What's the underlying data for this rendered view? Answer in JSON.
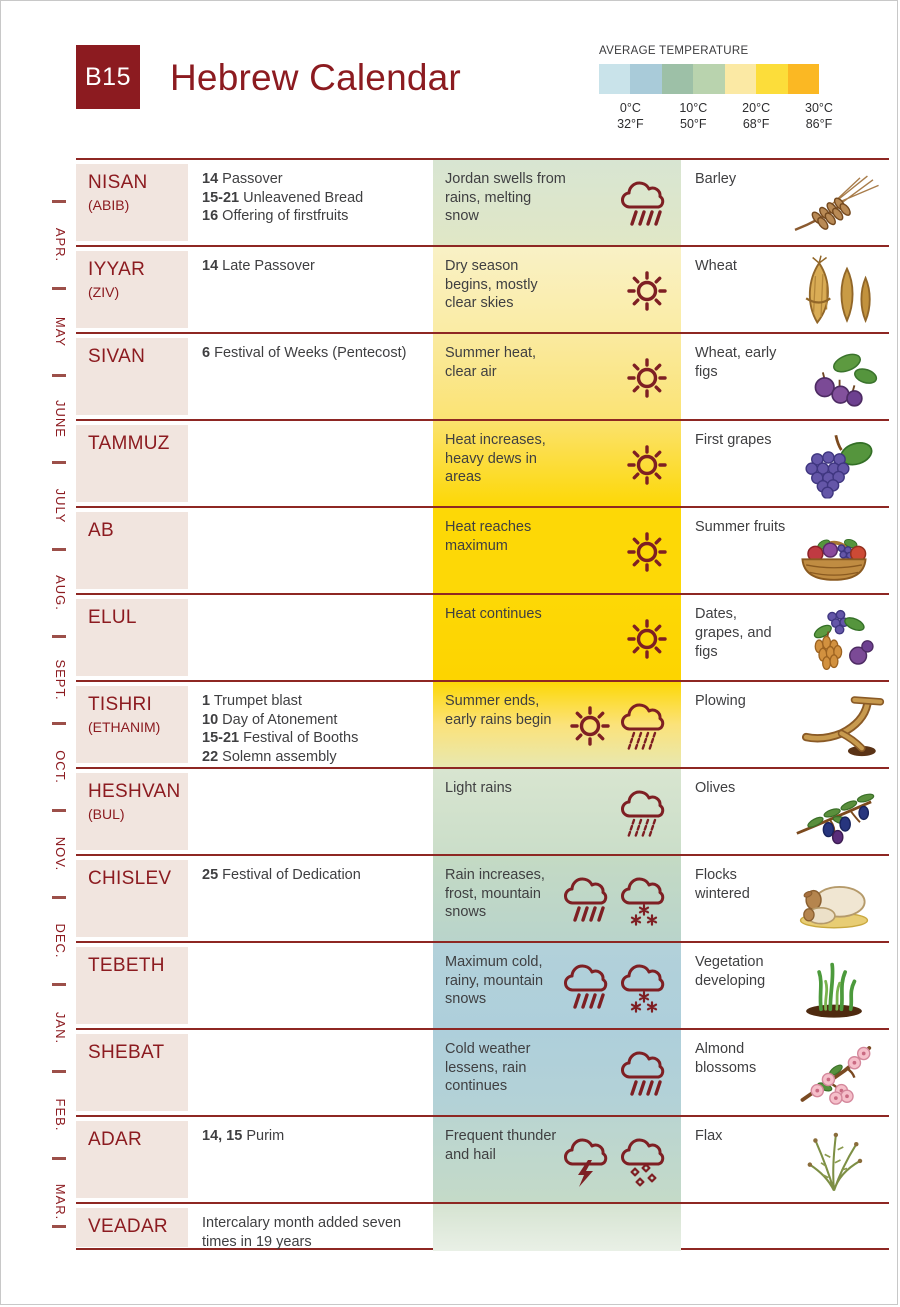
{
  "page": {
    "code": "B15",
    "title": "Hebrew Calendar"
  },
  "colors": {
    "accent": "#8c1b20",
    "line": "#8e2723",
    "month_bg": "#f1e5df",
    "icon": "#7e1f23",
    "text": "#3f3f41",
    "dash": "#9c4f49"
  },
  "legend": {
    "title": "AVERAGE TEMPERATURE",
    "segments": [
      "#c9e3ea",
      "#a9cbd9",
      "#9dc0a7",
      "#b9d3ae",
      "#fbe9a4",
      "#fcdd3a",
      "#fbb823"
    ],
    "ticks": [
      {
        "c": "0°C",
        "f": "32°F"
      },
      {
        "c": "10°C",
        "f": "50°F"
      },
      {
        "c": "20°C",
        "f": "68°F"
      },
      {
        "c": "30°C",
        "f": "86°F"
      }
    ]
  },
  "rail": {
    "months": [
      "APR.",
      "MAY",
      "JUNE",
      "JULY",
      "AUG.",
      "SEPT.",
      "OCT.",
      "NOV.",
      "DEC.",
      "JAN.",
      "FEB.",
      "MAR."
    ]
  },
  "rows": [
    {
      "month": "NISAN",
      "alt": "(ABIB)",
      "festivals": [
        {
          "d": "14",
          "t": "Passover"
        },
        {
          "d": "15-21",
          "t": "Unleavened Bread"
        },
        {
          "d": "16",
          "t": "Offering of firstfruits"
        }
      ],
      "weather": {
        "text": "Jordan swells from rains, melting snow",
        "icons": [
          "rain"
        ],
        "bg": [
          "#d8e5d2",
          "#e0e7c6"
        ]
      },
      "crops": {
        "label": "Barley",
        "art": "barley"
      }
    },
    {
      "month": "IYYAR",
      "alt": "(ZIV)",
      "festivals": [
        {
          "d": "14",
          "t": "Late Passover"
        }
      ],
      "weather": {
        "text": "Dry season begins, mostly clear skies",
        "icons": [
          "sun"
        ],
        "bg": [
          "#f9f1c6",
          "#faeca4"
        ]
      },
      "crops": {
        "label": "Wheat",
        "art": "wheat"
      }
    },
    {
      "month": "SIVAN",
      "alt": "",
      "festivals": [
        {
          "d": "6",
          "t": "Festival of Weeks (Pentecost)"
        }
      ],
      "weather": {
        "text": "Summer heat, clear air",
        "icons": [
          "sun"
        ],
        "bg": [
          "#faeaa0",
          "#fbe374"
        ]
      },
      "crops": {
        "label": "Wheat, early figs",
        "art": "figs"
      }
    },
    {
      "month": "TAMMUZ",
      "alt": "",
      "festivals": [],
      "weather": {
        "text": "Heat increases, heavy dews in areas",
        "icons": [
          "sun"
        ],
        "bg": [
          "#fbe26e",
          "#fdd806"
        ]
      },
      "crops": {
        "label": "First grapes",
        "art": "grapes"
      }
    },
    {
      "month": "AB",
      "alt": "",
      "festivals": [],
      "weather": {
        "text": "Heat reaches maximum",
        "icons": [
          "sun"
        ],
        "bg": [
          "#fdd806",
          "#fdd806"
        ]
      },
      "crops": {
        "label": "Summer fruits",
        "art": "basket"
      }
    },
    {
      "month": "ELUL",
      "alt": "",
      "festivals": [],
      "weather": {
        "text": "Heat continues",
        "icons": [
          "sun"
        ],
        "bg": [
          "#fdd806",
          "#fdd400"
        ]
      },
      "crops": {
        "label": "Dates, grapes, and figs",
        "art": "dates"
      }
    },
    {
      "month": "TISHRI",
      "alt": "(ETHANIM)",
      "festivals": [
        {
          "d": "1",
          "t": "Trumpet blast"
        },
        {
          "d": "10",
          "t": "Day of Atonement"
        },
        {
          "d": "15-21",
          "t": "Festival of Booths"
        },
        {
          "d": "22",
          "t": "Solemn assembly"
        }
      ],
      "weather": {
        "text": "Summer ends, early rains begin",
        "icons": [
          "sun",
          "drizzle"
        ],
        "bg": [
          "#fdd806",
          "#fbe27a",
          "#e8e8b0"
        ]
      },
      "crops": {
        "label": "Plowing",
        "art": "plow"
      }
    },
    {
      "month": "HESHVAN",
      "alt": "(BUL)",
      "festivals": [],
      "weather": {
        "text": "Light rains",
        "icons": [
          "drizzle"
        ],
        "bg": [
          "#d8e5d0",
          "#cbdec9"
        ]
      },
      "crops": {
        "label": "Olives",
        "art": "olives"
      }
    },
    {
      "month": "CHISLEV",
      "alt": "",
      "festivals": [
        {
          "d": "25",
          "t": "Festival of Dedication"
        }
      ],
      "weather": {
        "text": "Rain increases, frost, mountain snows",
        "icons": [
          "rain",
          "snow"
        ],
        "bg": [
          "#c4dac4",
          "#b9d4cb"
        ]
      },
      "crops": {
        "label": "Flocks wintered",
        "art": "sheep"
      }
    },
    {
      "month": "TEBETH",
      "alt": "",
      "festivals": [],
      "weather": {
        "text": "Maximum cold, rainy, mountain snows",
        "icons": [
          "rain",
          "snow"
        ],
        "bg": [
          "#b2d1da",
          "#aecfdb"
        ]
      },
      "crops": {
        "label": "Vegetation developing",
        "art": "vegetation"
      }
    },
    {
      "month": "SHEBAT",
      "alt": "",
      "festivals": [],
      "weather": {
        "text": "Cold weather lessens, rain continues",
        "icons": [
          "rain"
        ],
        "bg": [
          "#aecfdb",
          "#b4d2d6"
        ]
      },
      "crops": {
        "label": "Almond blossoms",
        "art": "almond"
      }
    },
    {
      "month": "ADAR",
      "alt": "",
      "festivals": [
        {
          "d": "14, 15",
          "t": "Purim"
        }
      ],
      "weather": {
        "text": "Frequent thunder and hail",
        "icons": [
          "thunder",
          "hail"
        ],
        "bg": [
          "#bad5d1",
          "#c4dac8"
        ]
      },
      "crops": {
        "label": "Flax",
        "art": "flax"
      }
    },
    {
      "month": "VEADAR",
      "alt": "",
      "festivals": [
        {
          "d": "",
          "t": "Intercalary month added seven times in 19 years"
        }
      ],
      "weather": {
        "text": "",
        "icons": [],
        "bg": [
          "#d5e3d1",
          "#e9f0e6"
        ]
      },
      "crops": {
        "label": "",
        "art": ""
      }
    }
  ]
}
